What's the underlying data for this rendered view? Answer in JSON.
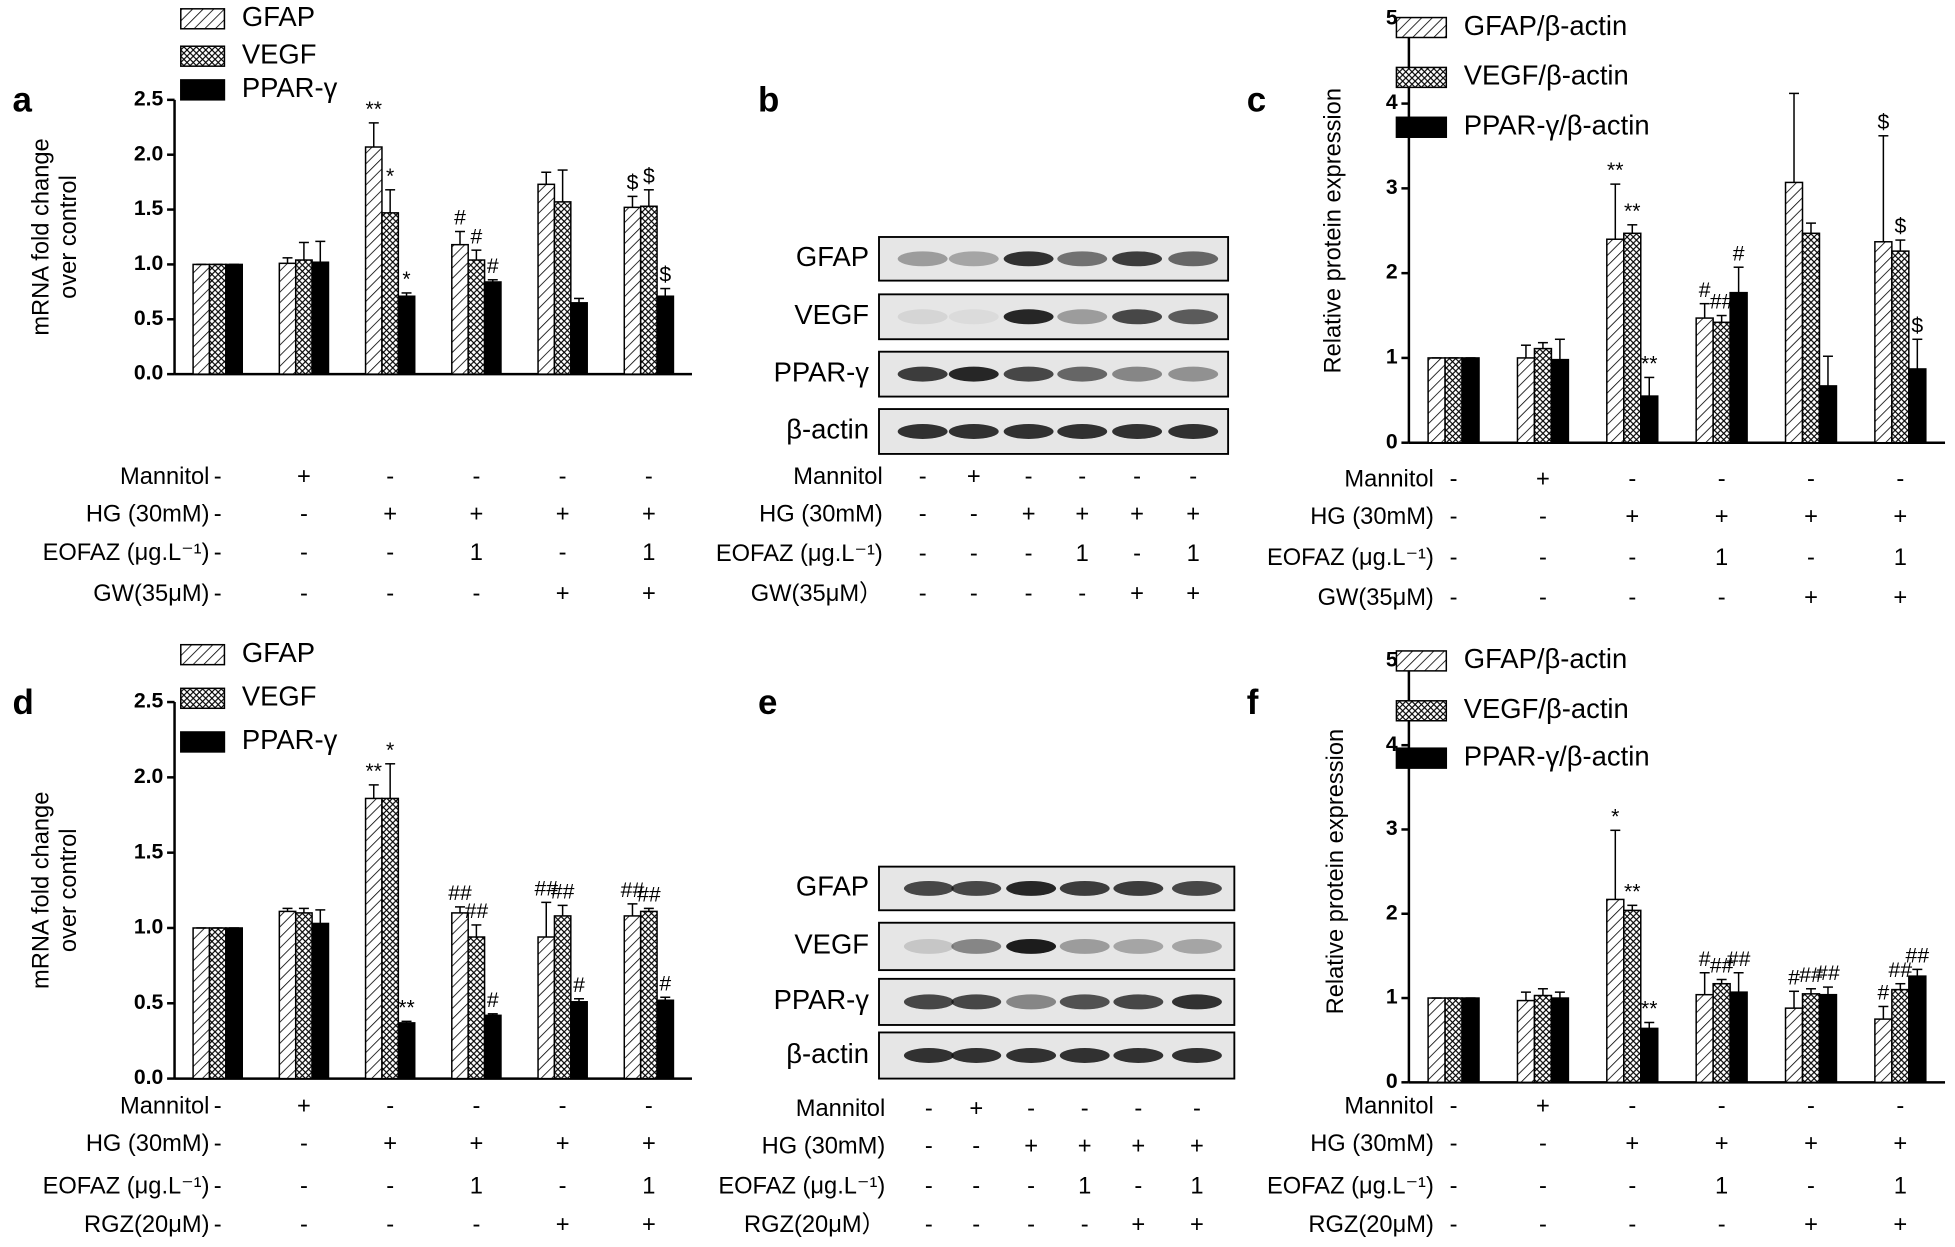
{
  "chart_data": [
    {
      "type": "bar",
      "panel": "a",
      "ylabel": [
        "mRNA fold change",
        "over control"
      ],
      "ylim": [
        0,
        2.5
      ],
      "yticks": [
        {
          "value": 0,
          "label": "0.0"
        },
        0.5,
        {
          "value": 1,
          "label": "1.0"
        },
        1.5,
        {
          "value": 2,
          "label": "2.0"
        },
        2.5
      ],
      "series": [
        {
          "name": "GFAP",
          "color": "#000000",
          "hatch": "diagonal",
          "values": [
            1.0,
            1.01,
            2.07,
            1.18,
            1.73,
            1.52
          ],
          "errors": [
            0,
            0.05,
            0.22,
            0.12,
            0.11,
            0.1
          ],
          "annotations": [
            null,
            null,
            "**",
            "#",
            null,
            "$"
          ]
        },
        {
          "name": "VEGF",
          "color": "#000000",
          "hatch": "cross",
          "values": [
            1.0,
            1.04,
            1.47,
            1.04,
            1.57,
            1.53
          ],
          "errors": [
            0,
            0.16,
            0.21,
            0.09,
            0.29,
            0.15
          ],
          "annotations": [
            null,
            null,
            "*",
            "#",
            null,
            "$"
          ]
        },
        {
          "name": "PPAR-γ",
          "color": "#000000",
          "hatch": "solid",
          "values": [
            1.0,
            1.02,
            0.71,
            0.84,
            0.65,
            0.71
          ],
          "errors": [
            0,
            0.19,
            0.03,
            0.02,
            0.04,
            0.07
          ],
          "annotations": [
            null,
            null,
            "*",
            "#",
            null,
            "$"
          ]
        }
      ],
      "conditions": [
        {
          "label": "Mannitol",
          "values": [
            "-",
            "+",
            "-",
            "-",
            "-",
            "-"
          ]
        },
        {
          "label": "HG (30mM)",
          "values": [
            "-",
            "-",
            "+",
            "+",
            "+",
            "+"
          ]
        },
        {
          "label": "EOFAZ (μg.L⁻¹)",
          "values": [
            "-",
            "-",
            "-",
            "1",
            "-",
            "1"
          ]
        },
        {
          "label": "GW(35μM)",
          "values": [
            "-",
            "-",
            "-",
            "-",
            "+",
            "+"
          ]
        }
      ]
    },
    {
      "type": "bar",
      "panel": "c",
      "ylabel": [
        "Relative protein expression"
      ],
      "ylim": [
        0,
        5
      ],
      "yticks": [
        0,
        1,
        2,
        3,
        4,
        5
      ],
      "series": [
        {
          "name": "GFAP/β-actin",
          "color": "#000000",
          "hatch": "diagonal",
          "values": [
            1.0,
            1.0,
            2.4,
            1.47,
            3.07,
            2.37
          ],
          "errors": [
            0,
            0.15,
            0.65,
            0.17,
            1.05,
            1.25
          ],
          "annotations": [
            null,
            null,
            "**",
            "#",
            null,
            "$"
          ]
        },
        {
          "name": "VEGF/β-actin",
          "color": "#000000",
          "hatch": "cross",
          "values": [
            1.0,
            1.11,
            2.47,
            1.42,
            2.47,
            2.26
          ],
          "errors": [
            0,
            0.07,
            0.1,
            0.08,
            0.12,
            0.13
          ],
          "annotations": [
            null,
            null,
            "**",
            "##",
            null,
            "$"
          ]
        },
        {
          "name": "PPAR-γ/β-actin",
          "color": "#000000",
          "hatch": "solid",
          "values": [
            1.0,
            0.98,
            0.55,
            1.77,
            0.67,
            0.87
          ],
          "errors": [
            0,
            0.24,
            0.22,
            0.3,
            0.35,
            0.35
          ],
          "annotations": [
            null,
            null,
            "**",
            "#",
            null,
            "$"
          ]
        }
      ],
      "conditions": [
        {
          "label": "Mannitol",
          "values": [
            "-",
            "+",
            "-",
            "-",
            "-",
            "-"
          ]
        },
        {
          "label": "HG (30mM)",
          "values": [
            "-",
            "-",
            "+",
            "+",
            "+",
            "+"
          ]
        },
        {
          "label": "EOFAZ (μg.L⁻¹)",
          "values": [
            "-",
            "-",
            "-",
            "1",
            "-",
            "1"
          ]
        },
        {
          "label": "GW(35μM)",
          "values": [
            "-",
            "-",
            "-",
            "-",
            "+",
            "+"
          ]
        }
      ]
    },
    {
      "type": "bar",
      "panel": "d",
      "ylabel": [
        "mRNA fold change",
        "over control"
      ],
      "ylim": [
        0,
        2.5
      ],
      "yticks": [
        {
          "value": 0,
          "label": "0.0"
        },
        0.5,
        {
          "value": 1,
          "label": "1.0"
        },
        1.5,
        {
          "value": 2,
          "label": "2.0"
        },
        2.5
      ],
      "series": [
        {
          "name": "GFAP",
          "color": "#000000",
          "hatch": "diagonal",
          "values": [
            1.0,
            1.11,
            1.86,
            1.1,
            0.94,
            1.08
          ],
          "errors": [
            0,
            0.02,
            0.09,
            0.04,
            0.23,
            0.08
          ],
          "annotations": [
            null,
            null,
            "**",
            "##",
            "##",
            "##"
          ]
        },
        {
          "name": "VEGF",
          "color": "#000000",
          "hatch": "cross",
          "values": [
            1.0,
            1.1,
            1.86,
            0.94,
            1.08,
            1.11
          ],
          "errors": [
            0,
            0.03,
            0.23,
            0.08,
            0.07,
            0.02
          ],
          "annotations": [
            null,
            null,
            "*",
            "##",
            "##",
            "##"
          ]
        },
        {
          "name": "PPAR-γ",
          "color": "#000000",
          "hatch": "solid",
          "values": [
            1.0,
            1.03,
            0.37,
            0.42,
            0.51,
            0.52
          ],
          "errors": [
            0,
            0.09,
            0.01,
            0.01,
            0.02,
            0.02
          ],
          "annotations": [
            null,
            null,
            "**",
            "#",
            "#",
            "#"
          ]
        }
      ],
      "conditions": [
        {
          "label": "Mannitol",
          "values": [
            "-",
            "+",
            "-",
            "-",
            "-",
            "-"
          ]
        },
        {
          "label": "HG (30mM)",
          "values": [
            "-",
            "-",
            "+",
            "+",
            "+",
            "+"
          ]
        },
        {
          "label": "EOFAZ (μg.L⁻¹)",
          "values": [
            "-",
            "-",
            "-",
            "1",
            "-",
            "1"
          ]
        },
        {
          "label": "RGZ(20μM)",
          "values": [
            "-",
            "-",
            "-",
            "-",
            "+",
            "+"
          ]
        }
      ]
    },
    {
      "type": "bar",
      "panel": "f",
      "ylabel": [
        "Relative protein expression"
      ],
      "ylim": [
        0,
        5
      ],
      "yticks": [
        0,
        1,
        2,
        3,
        4,
        5
      ],
      "series": [
        {
          "name": "GFAP/β-actin",
          "color": "#000000",
          "hatch": "diagonal",
          "values": [
            1.0,
            0.97,
            2.17,
            1.04,
            0.88,
            0.75
          ],
          "errors": [
            0,
            0.1,
            0.82,
            0.26,
            0.2,
            0.15
          ],
          "annotations": [
            null,
            null,
            "*",
            "#",
            "#",
            "#"
          ]
        },
        {
          "name": "VEGF/β-actin",
          "color": "#000000",
          "hatch": "cross",
          "values": [
            1.0,
            1.03,
            2.04,
            1.17,
            1.05,
            1.1
          ],
          "errors": [
            0,
            0.08,
            0.06,
            0.05,
            0.06,
            0.07
          ],
          "annotations": [
            null,
            null,
            "**",
            "##",
            "##",
            "##"
          ]
        },
        {
          "name": "PPAR-γ/β-actin",
          "color": "#000000",
          "hatch": "solid",
          "values": [
            1.0,
            1.0,
            0.64,
            1.07,
            1.04,
            1.26
          ],
          "errors": [
            0,
            0.07,
            0.07,
            0.23,
            0.09,
            0.08
          ],
          "annotations": [
            null,
            null,
            "**",
            "##",
            "##",
            "##"
          ]
        }
      ],
      "conditions": [
        {
          "label": "Mannitol",
          "values": [
            "-",
            "+",
            "-",
            "-",
            "-",
            "-"
          ]
        },
        {
          "label": "HG (30mM)",
          "values": [
            "-",
            "-",
            "+",
            "+",
            "+",
            "+"
          ]
        },
        {
          "label": "EOFAZ (μg.L⁻¹)",
          "values": [
            "-",
            "-",
            "-",
            "1",
            "-",
            "1"
          ]
        },
        {
          "label": "RGZ(20μM)",
          "values": [
            "-",
            "-",
            "-",
            "-",
            "+",
            "+"
          ]
        }
      ]
    }
  ],
  "blots": [
    {
      "panel": "b",
      "rows": [
        "GFAP",
        "VEGF",
        "PPAR-γ",
        "β-actin"
      ],
      "conditions": [
        {
          "label": "Mannitol",
          "values": [
            "-",
            "+",
            "-",
            "-",
            "-",
            "-"
          ]
        },
        {
          "label": "HG (30mM)",
          "values": [
            "-",
            "-",
            "+",
            "+",
            "+",
            "+"
          ]
        },
        {
          "label": "EOFAZ (μg.L⁻¹)",
          "values": [
            "-",
            "-",
            "-",
            "1",
            "-",
            "1"
          ]
        },
        {
          "label": "GW(35μM）",
          "values": [
            "-",
            "-",
            "-",
            "-",
            "+",
            "+"
          ]
        }
      ]
    },
    {
      "panel": "e",
      "rows": [
        "GFAP",
        "VEGF",
        "PPAR-γ",
        "β-actin"
      ],
      "conditions": [
        {
          "label": "Mannitol",
          "values": [
            "-",
            "+",
            "-",
            "-",
            "-",
            "-"
          ]
        },
        {
          "label": "HG (30mM)",
          "values": [
            "-",
            "-",
            "+",
            "+",
            "+",
            "+"
          ]
        },
        {
          "label": "EOFAZ (μg.L⁻¹)",
          "values": [
            "-",
            "-",
            "-",
            "1",
            "-",
            "1"
          ]
        },
        {
          "label": "RGZ(20μM）",
          "values": [
            "-",
            "-",
            "-",
            "-",
            "+",
            "+"
          ]
        }
      ]
    }
  ]
}
